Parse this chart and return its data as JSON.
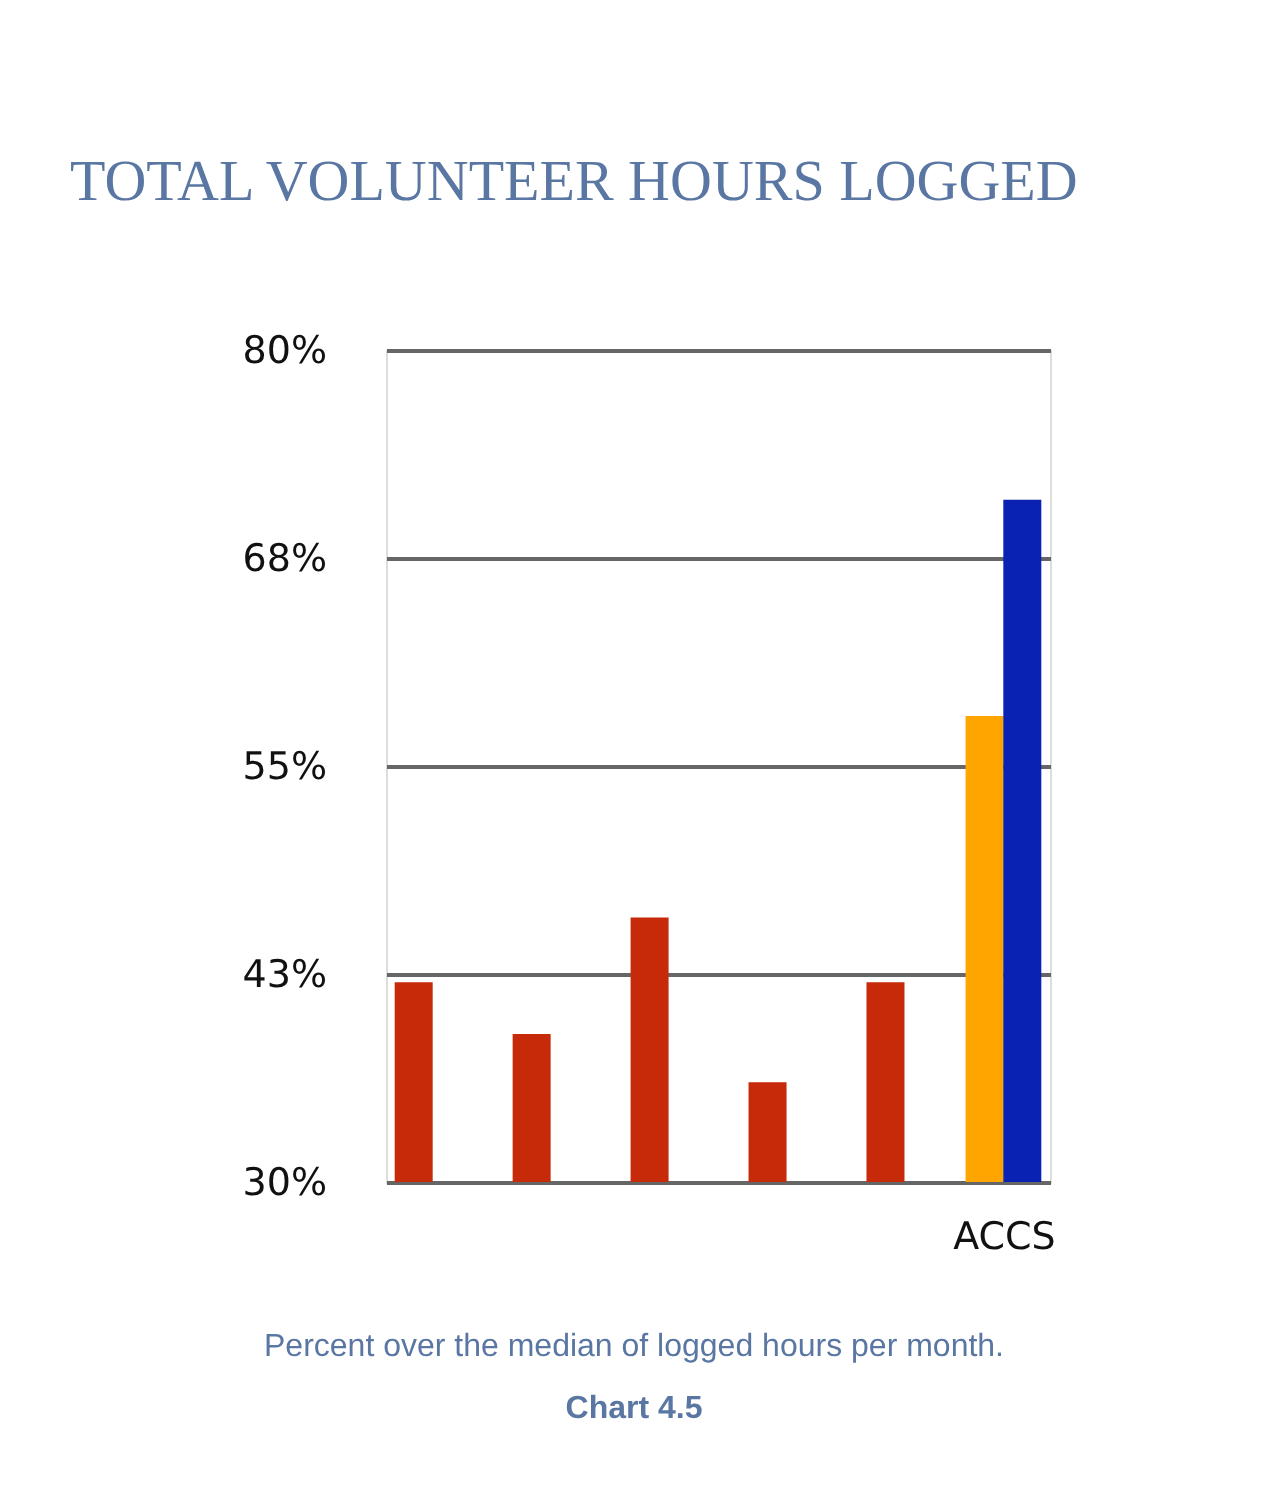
{
  "chart_data": {
    "type": "bar",
    "title": "TOTAL VOLUNTEER HOURS LOGGED",
    "categories": [
      null,
      null,
      null,
      null,
      null,
      "ACCS"
    ],
    "series": [
      {
        "color": "#c62a08",
        "values": [
          42,
          38.9,
          45.9,
          36,
          42,
          null
        ]
      },
      {
        "color": "#ffa500",
        "values": [
          null,
          null,
          null,
          null,
          null,
          58
        ]
      },
      {
        "color": "#0a22b4",
        "values": [
          null,
          null,
          null,
          null,
          null,
          71
        ]
      }
    ],
    "ylim": [
      30,
      80
    ],
    "yticks": [
      {
        "value": 30,
        "label": "30%"
      },
      {
        "value": 42.5,
        "label": "43%"
      },
      {
        "value": 55,
        "label": "55%"
      },
      {
        "value": 67.5,
        "label": "68%"
      },
      {
        "value": 80,
        "label": "80%"
      }
    ],
    "grid": "y",
    "annotations": [
      "Percent over the median of logged hours per month.",
      "Chart 4.5"
    ]
  }
}
